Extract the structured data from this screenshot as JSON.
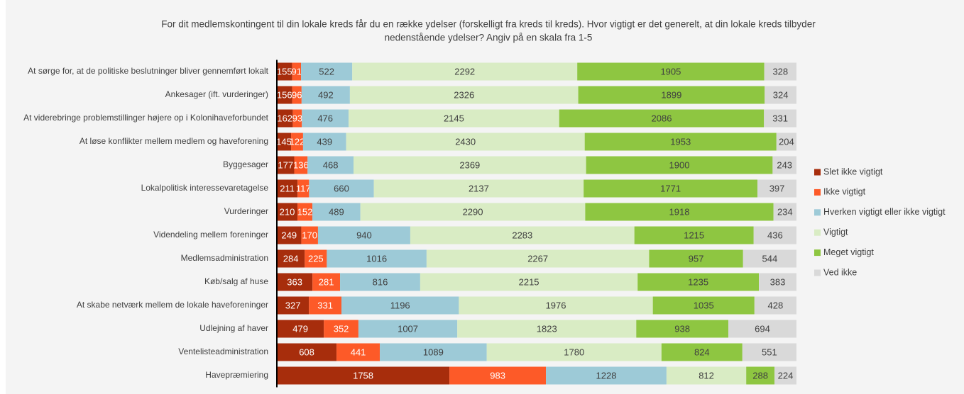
{
  "chart_data": {
    "type": "bar",
    "orientation": "horizontal",
    "stacking": "percent",
    "title": [
      "For dit medlemskontingent til din lokale kreds får du en række ydelser (forskelligt fra kreds til kreds). Hvor vigtigt er det generelt, at din lokale kreds tilbyder",
      "nedenstående ydelser? Angiv på en skala fra 1-5"
    ],
    "legend": "right",
    "categories": [
      "At sørge for, at de politiske beslutninger bliver gennemført lokalt",
      "Ankesager (ift. vurderinger)",
      "At viderebringe problemstillinger højere op i Kolonihaveforbundet",
      "At løse konflikter mellem medlem og haveforening",
      "Byggesager",
      "Lokalpolitisk interessevaretagelse",
      "Vurderinger",
      "Videndeling mellem foreninger",
      "Medlemsadministration",
      "Køb/salg af huse",
      "At skabe netværk mellem de lokale haveforeninger",
      "Udlejning af haver",
      "Ventelisteadministration",
      "Havepræmiering"
    ],
    "series": [
      {
        "name": "Slet ikke vigtigt",
        "color": "#a72d0c",
        "values": [
          155,
          156,
          162,
          145,
          177,
          211,
          210,
          249,
          284,
          363,
          327,
          479,
          608,
          1758
        ]
      },
      {
        "name": "Ikke vigtigt",
        "color": "#fd5a28",
        "values": [
          91,
          96,
          93,
          122,
          136,
          117,
          152,
          170,
          225,
          281,
          331,
          352,
          441,
          983
        ]
      },
      {
        "name": "Hverken vigtigt eller ikke vigtigt",
        "color": "#9dcad7",
        "values": [
          522,
          492,
          476,
          439,
          468,
          660,
          489,
          940,
          1016,
          816,
          1196,
          1007,
          1089,
          1228
        ]
      },
      {
        "name": "Vigtigt",
        "color": "#d9ecc4",
        "values": [
          2292,
          2326,
          2145,
          2430,
          2369,
          2137,
          2290,
          2283,
          2267,
          2215,
          1976,
          1823,
          1780,
          812
        ]
      },
      {
        "name": "Meget vigtigt",
        "color": "#8ec641",
        "values": [
          1905,
          1899,
          2086,
          1953,
          1900,
          1771,
          1918,
          1215,
          957,
          1235,
          1035,
          938,
          824,
          288
        ]
      },
      {
        "name": "Ved ikke",
        "color": "#d9d9d9",
        "values": [
          328,
          324,
          331,
          204,
          243,
          397,
          234,
          436,
          544,
          383,
          428,
          694,
          551,
          224
        ]
      }
    ]
  }
}
